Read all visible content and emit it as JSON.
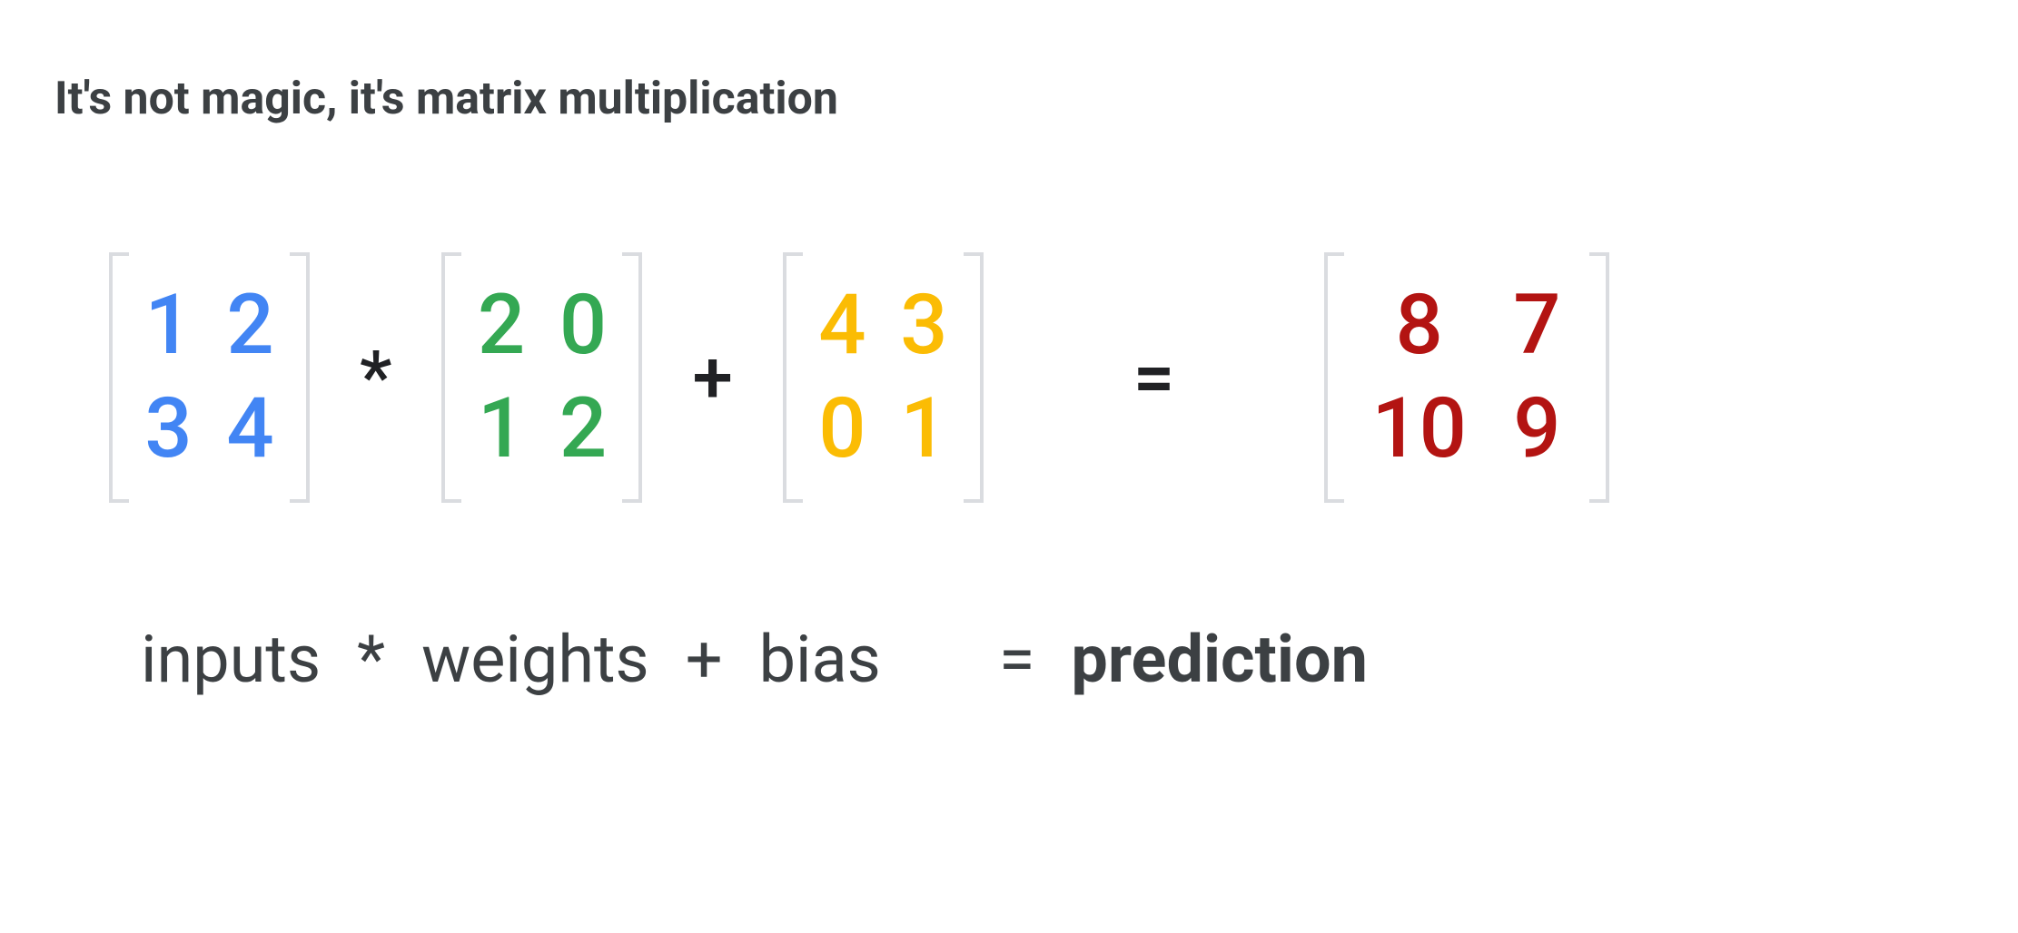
{
  "title": "It's not magic, it's matrix multiplication",
  "colors": {
    "inputs": "#4285f4",
    "weights": "#34a853",
    "bias": "#fbbc04",
    "prediction": "#b31412",
    "text": "#3c4043",
    "operator": "#202124",
    "bracket": "#dadce0",
    "background": "#ffffff"
  },
  "typography": {
    "title_fontsize": 50,
    "title_weight": 700,
    "matrix_fontsize": 92,
    "matrix_weight": 500,
    "operator_fontsize": 80,
    "label_fontsize": 72
  },
  "matrices": {
    "inputs": {
      "rows": 2,
      "cols": 2,
      "values": [
        [
          "1",
          "2"
        ],
        [
          "3",
          "4"
        ]
      ],
      "color": "#4285f4"
    },
    "weights": {
      "rows": 2,
      "cols": 2,
      "values": [
        [
          "2",
          "0"
        ],
        [
          "1",
          "2"
        ]
      ],
      "color": "#34a853"
    },
    "bias": {
      "rows": 2,
      "cols": 2,
      "values": [
        [
          "4",
          "3"
        ],
        [
          "0",
          "1"
        ]
      ],
      "color": "#fbbc04"
    },
    "prediction": {
      "rows": 2,
      "cols": 2,
      "values": [
        [
          "8",
          "7"
        ],
        [
          "10",
          "9"
        ]
      ],
      "color": "#b31412"
    }
  },
  "operators": {
    "multiply": "*",
    "plus": "+",
    "equals": "="
  },
  "labels": {
    "inputs": "inputs",
    "multiply": "*",
    "weights": "weights",
    "plus": "+",
    "bias": "bias",
    "equals": "=",
    "prediction": "prediction"
  }
}
